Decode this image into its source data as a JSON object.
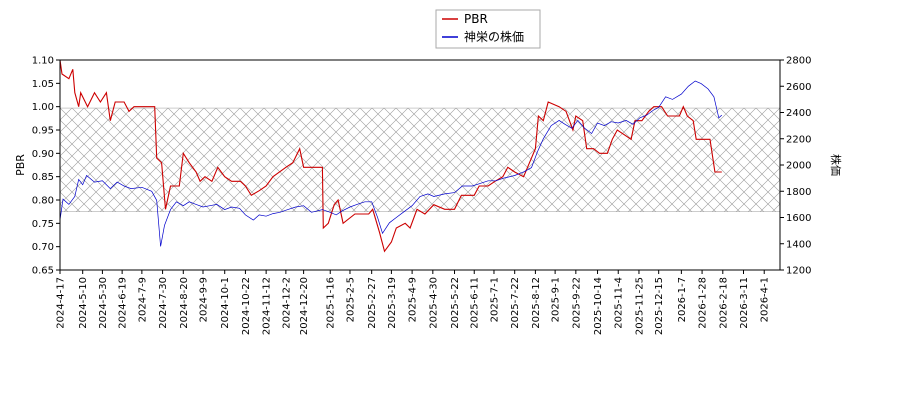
{
  "chart_data": {
    "type": "line",
    "legend": {
      "placement": "top-center"
    },
    "grid": false,
    "x_ticks": [
      "2024-4-17",
      "2024-5-10",
      "2024-5-30",
      "2024-6-19",
      "2024-7-9",
      "2024-7-30",
      "2024-8-20",
      "2024-9-9",
      "2024-10-1",
      "2024-10-22",
      "2024-11-12",
      "2024-12-2",
      "2024-12-20",
      "2025-1-16",
      "2025-2-5",
      "2025-2-27",
      "2025-3-19",
      "2025-4-9",
      "2025-4-30",
      "2025-5-22",
      "2025-6-11",
      "2025-7-1",
      "2025-7-22",
      "2025-8-12",
      "2025-9-1",
      "2025-9-22",
      "2025-10-14",
      "2025-11-4",
      "2025-11-25",
      "2025-12-15",
      "2026-1-7",
      "2026-1-28",
      "2026-2-18",
      "2026-3-11",
      "2026-4-1"
    ],
    "x_range": [
      "2024-4-17",
      "2026-4-17"
    ],
    "left_axis": {
      "label": "PBR",
      "range": [
        0.65,
        1.1
      ],
      "ticks": [
        "0.65",
        "0.70",
        "0.75",
        "0.80",
        "0.85",
        "0.90",
        "0.95",
        "1.00",
        "1.05",
        "1.10"
      ]
    },
    "right_axis": {
      "label": "株価",
      "range": [
        1200,
        2800
      ],
      "ticks": [
        "1200",
        "1400",
        "1600",
        "1800",
        "2000",
        "2200",
        "2400",
        "2600",
        "2800"
      ]
    },
    "pbr_band": [
      0.775,
      0.997
    ],
    "series": [
      {
        "name": "PBR",
        "color": "#cc0000",
        "axis": "left",
        "points": [
          [
            "2024-4-17",
            1.1
          ],
          [
            "2024-4-19",
            1.07
          ],
          [
            "2024-4-26",
            1.06
          ],
          [
            "2024-4-30",
            1.08
          ],
          [
            "2024-5-2",
            1.03
          ],
          [
            "2024-5-6",
            1.0
          ],
          [
            "2024-5-8",
            1.03
          ],
          [
            "2024-5-15",
            1.0
          ],
          [
            "2024-5-22",
            1.03
          ],
          [
            "2024-5-28",
            1.01
          ],
          [
            "2024-6-3",
            1.03
          ],
          [
            "2024-6-7",
            0.97
          ],
          [
            "2024-6-12",
            1.01
          ],
          [
            "2024-6-21",
            1.01
          ],
          [
            "2024-6-26",
            0.99
          ],
          [
            "2024-7-1",
            1.0
          ],
          [
            "2024-7-22",
            1.0
          ],
          [
            "2024-7-24",
            0.89
          ],
          [
            "2024-7-29",
            0.88
          ],
          [
            "2024-8-2",
            0.78
          ],
          [
            "2024-8-7",
            0.83
          ],
          [
            "2024-8-16",
            0.83
          ],
          [
            "2024-8-20",
            0.9
          ],
          [
            "2024-8-26",
            0.88
          ],
          [
            "2024-9-2",
            0.86
          ],
          [
            "2024-9-6",
            0.84
          ],
          [
            "2024-9-11",
            0.85
          ],
          [
            "2024-9-18",
            0.84
          ],
          [
            "2024-9-24",
            0.87
          ],
          [
            "2024-10-1",
            0.85
          ],
          [
            "2024-10-8",
            0.84
          ],
          [
            "2024-10-17",
            0.84
          ],
          [
            "2024-10-22",
            0.83
          ],
          [
            "2024-10-28",
            0.81
          ],
          [
            "2024-11-5",
            0.82
          ],
          [
            "2024-11-12",
            0.83
          ],
          [
            "2024-11-19",
            0.85
          ],
          [
            "2024-12-2",
            0.87
          ],
          [
            "2024-12-9",
            0.88
          ],
          [
            "2024-12-16",
            0.91
          ],
          [
            "2024-12-20",
            0.87
          ],
          [
            "2025-1-8",
            0.87
          ],
          [
            "2025-1-9",
            0.74
          ],
          [
            "2025-1-14",
            0.75
          ],
          [
            "2025-1-20",
            0.79
          ],
          [
            "2025-1-24",
            0.8
          ],
          [
            "2025-1-29",
            0.75
          ],
          [
            "2025-2-10",
            0.77
          ],
          [
            "2025-2-24",
            0.77
          ],
          [
            "2025-2-28",
            0.78
          ],
          [
            "2025-3-7",
            0.73
          ],
          [
            "2025-3-12",
            0.69
          ],
          [
            "2025-3-19",
            0.71
          ],
          [
            "2025-3-24",
            0.74
          ],
          [
            "2025-4-2",
            0.75
          ],
          [
            "2025-4-7",
            0.74
          ],
          [
            "2025-4-14",
            0.78
          ],
          [
            "2025-4-22",
            0.77
          ],
          [
            "2025-5-1",
            0.79
          ],
          [
            "2025-5-12",
            0.78
          ],
          [
            "2025-5-22",
            0.78
          ],
          [
            "2025-5-29",
            0.81
          ],
          [
            "2025-6-11",
            0.81
          ],
          [
            "2025-6-16",
            0.83
          ],
          [
            "2025-6-25",
            0.83
          ],
          [
            "2025-7-2",
            0.84
          ],
          [
            "2025-7-10",
            0.85
          ],
          [
            "2025-7-15",
            0.87
          ],
          [
            "2025-7-22",
            0.86
          ],
          [
            "2025-7-31",
            0.85
          ],
          [
            "2025-8-6",
            0.88
          ],
          [
            "2025-8-12",
            0.91
          ],
          [
            "2025-8-15",
            0.98
          ],
          [
            "2025-8-20",
            0.97
          ],
          [
            "2025-8-25",
            1.01
          ],
          [
            "2025-9-5",
            1.0
          ],
          [
            "2025-9-12",
            0.99
          ],
          [
            "2025-9-19",
            0.95
          ],
          [
            "2025-9-22",
            0.98
          ],
          [
            "2025-9-29",
            0.97
          ],
          [
            "2025-10-3",
            0.91
          ],
          [
            "2025-10-10",
            0.91
          ],
          [
            "2025-10-16",
            0.9
          ],
          [
            "2025-10-24",
            0.9
          ],
          [
            "2025-10-29",
            0.93
          ],
          [
            "2025-11-3",
            0.95
          ],
          [
            "2025-11-10",
            0.94
          ],
          [
            "2025-11-17",
            0.93
          ],
          [
            "2025-11-21",
            0.97
          ],
          [
            "2025-11-28",
            0.97
          ],
          [
            "2025-12-5",
            0.99
          ],
          [
            "2025-12-10",
            1.0
          ],
          [
            "2025-12-18",
            1.0
          ],
          [
            "2025-12-24",
            0.98
          ],
          [
            "2026-1-5",
            0.98
          ],
          [
            "2026-1-9",
            1.0
          ],
          [
            "2026-1-13",
            0.98
          ],
          [
            "2026-1-19",
            0.97
          ],
          [
            "2026-1-22",
            0.93
          ],
          [
            "2026-2-5",
            0.93
          ],
          [
            "2026-2-10",
            0.86
          ],
          [
            "2026-2-17",
            0.86
          ]
        ]
      },
      {
        "name": "神栄の株価",
        "color": "#0000cc",
        "axis": "right",
        "points": [
          [
            "2024-4-17",
            1580
          ],
          [
            "2024-4-20",
            1740
          ],
          [
            "2024-4-26",
            1700
          ],
          [
            "2024-5-2",
            1760
          ],
          [
            "2024-5-6",
            1890
          ],
          [
            "2024-5-10",
            1850
          ],
          [
            "2024-5-14",
            1920
          ],
          [
            "2024-5-22",
            1870
          ],
          [
            "2024-5-30",
            1880
          ],
          [
            "2024-6-7",
            1820
          ],
          [
            "2024-6-14",
            1870
          ],
          [
            "2024-6-21",
            1840
          ],
          [
            "2024-6-28",
            1820
          ],
          [
            "2024-7-9",
            1830
          ],
          [
            "2024-7-19",
            1800
          ],
          [
            "2024-7-24",
            1730
          ],
          [
            "2024-7-28",
            1380
          ],
          [
            "2024-8-1",
            1540
          ],
          [
            "2024-8-7",
            1660
          ],
          [
            "2024-8-13",
            1720
          ],
          [
            "2024-8-20",
            1690
          ],
          [
            "2024-8-26",
            1720
          ],
          [
            "2024-9-2",
            1700
          ],
          [
            "2024-9-9",
            1680
          ],
          [
            "2024-9-16",
            1690
          ],
          [
            "2024-9-23",
            1700
          ],
          [
            "2024-10-1",
            1660
          ],
          [
            "2024-10-8",
            1680
          ],
          [
            "2024-10-16",
            1670
          ],
          [
            "2024-10-22",
            1620
          ],
          [
            "2024-10-30",
            1580
          ],
          [
            "2024-11-5",
            1620
          ],
          [
            "2024-11-12",
            1610
          ],
          [
            "2024-11-19",
            1630
          ],
          [
            "2024-11-26",
            1640
          ],
          [
            "2024-12-4",
            1660
          ],
          [
            "2024-12-12",
            1680
          ],
          [
            "2024-12-20",
            1690
          ],
          [
            "2024-12-28",
            1640
          ],
          [
            "2025-1-8",
            1660
          ],
          [
            "2025-1-16",
            1640
          ],
          [
            "2025-1-22",
            1620
          ],
          [
            "2025-1-28",
            1650
          ],
          [
            "2025-2-5",
            1680
          ],
          [
            "2025-2-12",
            1700
          ],
          [
            "2025-2-20",
            1720
          ],
          [
            "2025-2-27",
            1720
          ],
          [
            "2025-3-5",
            1600
          ],
          [
            "2025-3-10",
            1480
          ],
          [
            "2025-3-17",
            1560
          ],
          [
            "2025-3-24",
            1600
          ],
          [
            "2025-3-31",
            1640
          ],
          [
            "2025-4-9",
            1690
          ],
          [
            "2025-4-17",
            1760
          ],
          [
            "2025-4-25",
            1780
          ],
          [
            "2025-5-1",
            1760
          ],
          [
            "2025-5-12",
            1780
          ],
          [
            "2025-5-22",
            1790
          ],
          [
            "2025-5-30",
            1840
          ],
          [
            "2025-6-9",
            1840
          ],
          [
            "2025-6-17",
            1860
          ],
          [
            "2025-6-25",
            1880
          ],
          [
            "2025-7-3",
            1880
          ],
          [
            "2025-7-11",
            1900
          ],
          [
            "2025-7-22",
            1920
          ],
          [
            "2025-8-1",
            1950
          ],
          [
            "2025-8-8",
            1980
          ],
          [
            "2025-8-14",
            2100
          ],
          [
            "2025-8-20",
            2200
          ],
          [
            "2025-8-28",
            2300
          ],
          [
            "2025-9-5",
            2340
          ],
          [
            "2025-9-11",
            2310
          ],
          [
            "2025-9-18",
            2280
          ],
          [
            "2025-9-24",
            2340
          ],
          [
            "2025-10-1",
            2280
          ],
          [
            "2025-10-8",
            2240
          ],
          [
            "2025-10-14",
            2320
          ],
          [
            "2025-10-21",
            2300
          ],
          [
            "2025-10-28",
            2330
          ],
          [
            "2025-11-4",
            2320
          ],
          [
            "2025-11-12",
            2340
          ],
          [
            "2025-11-19",
            2310
          ],
          [
            "2025-11-26",
            2360
          ],
          [
            "2025-12-3",
            2380
          ],
          [
            "2025-12-10",
            2420
          ],
          [
            "2025-12-15",
            2440
          ],
          [
            "2025-12-22",
            2520
          ],
          [
            "2025-12-29",
            2500
          ],
          [
            "2026-1-7",
            2540
          ],
          [
            "2026-1-14",
            2600
          ],
          [
            "2026-1-21",
            2640
          ],
          [
            "2026-1-27",
            2620
          ],
          [
            "2026-2-3",
            2580
          ],
          [
            "2026-2-9",
            2520
          ],
          [
            "2026-2-14",
            2360
          ],
          [
            "2026-2-17",
            2380
          ]
        ]
      }
    ]
  }
}
